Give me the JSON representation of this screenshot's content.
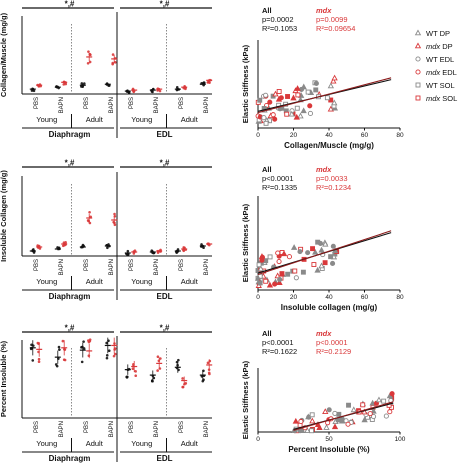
{
  "colors": {
    "black": "#111111",
    "red": "#d9383a",
    "grey": "#8a8a8a",
    "darkred": "#8b1a1a"
  },
  "sig_label": "*,#",
  "group_labels": {
    "young": "Young",
    "adult": "Adult",
    "diaphragm": "Diaphragm",
    "edl": "EDL"
  },
  "treatment_labels": [
    "PBS",
    "BAPN",
    "PBS",
    "BAPN"
  ],
  "legend": {
    "entries": [
      {
        "label": "WT DP",
        "marker": "triangle",
        "color": "#8a8a8a"
      },
      {
        "label": "mdx DP",
        "marker": "triangle",
        "color": "#d9383a"
      },
      {
        "label": "WT EDL",
        "marker": "circle",
        "color": "#8a8a8a"
      },
      {
        "label": "mdx EDL",
        "marker": "circle",
        "color": "#d9383a"
      },
      {
        "label": "WT SOL",
        "marker": "square",
        "color": "#8a8a8a"
      },
      {
        "label": "mdx SOL",
        "marker": "square",
        "color": "#d9383a"
      }
    ]
  },
  "chart_data": [
    {
      "type": "scatter",
      "panel": "dot-plot",
      "ylabel": "Collagen/Muscle (mg/g)",
      "groups": [
        "Young PBS",
        "Young BAPN",
        "Adult PBS",
        "Adult BAPN"
      ],
      "muscles": [
        "Diaphragm",
        "EDL"
      ],
      "series": [
        {
          "name": "WT",
          "color": "#111111",
          "means": [
            5,
            7,
            9,
            10,
            3,
            4,
            5,
            10
          ]
        },
        {
          "name": "mdx",
          "color": "#d9383a",
          "means": [
            9,
            12,
            38,
            36,
            4,
            5,
            7,
            14
          ]
        }
      ],
      "ylim": [
        0,
        80
      ]
    },
    {
      "type": "scatter",
      "panel": "correlation",
      "xlabel": "Collagen/Muscle (mg/g)",
      "ylabel": "Elastic Stiffness (kPa)",
      "xticks": [
        0,
        20,
        40,
        60,
        80
      ],
      "xlim": [
        0,
        80
      ],
      "ylim": [
        0,
        2000
      ],
      "stats": {
        "all_label": "All",
        "mdx_label": "mdx",
        "all_p": "p=0.0002",
        "all_r2": "R²=0.1053",
        "mdx_p": "p=0.0099",
        "mdx_r2": "R²=0.09654"
      },
      "fit": {
        "x0": 0,
        "y0": 380,
        "x1": 75,
        "y1": 1100
      }
    },
    {
      "type": "scatter",
      "panel": "dot-plot",
      "ylabel": "Insoluble Collagen (mg/g)",
      "groups": [
        "Young PBS",
        "Young BAPN",
        "Adult PBS",
        "Adult BAPN"
      ],
      "muscles": [
        "Diaphragm",
        "EDL"
      ],
      "series": [
        {
          "name": "WT",
          "color": "#111111",
          "means": [
            5,
            7,
            9,
            10,
            3,
            4,
            5,
            10
          ]
        },
        {
          "name": "mdx",
          "color": "#d9383a",
          "means": [
            9,
            12,
            38,
            36,
            4,
            5,
            7,
            12
          ]
        }
      ],
      "ylim": [
        0,
        80
      ]
    },
    {
      "type": "scatter",
      "panel": "correlation",
      "xlabel": "Insoluble collagen (mg/g)",
      "ylabel": "Elastic Stiffness (kPa)",
      "xticks": [
        0,
        20,
        40,
        60,
        80
      ],
      "xlim": [
        0,
        80
      ],
      "ylim": [
        0,
        2000
      ],
      "stats": {
        "all_label": "All",
        "mdx_label": "mdx",
        "all_p": "p<0.0001",
        "all_r2": "R²=0.1335",
        "mdx_p": "p=0.0033",
        "mdx_r2": "R²=0.1234"
      },
      "fit": {
        "x0": 0,
        "y0": 360,
        "x1": 75,
        "y1": 1220
      }
    },
    {
      "type": "scatter",
      "panel": "dot-plot",
      "ylabel": "Percent Insoluble (%)",
      "groups": [
        "Young PBS",
        "Young BAPN",
        "Adult PBS",
        "Adult BAPN"
      ],
      "muscles": [
        "Diaphragm",
        "EDL"
      ],
      "series": [
        {
          "name": "WT",
          "color": "#111111",
          "means": [
            90,
            78,
            87,
            93,
            62,
            55,
            65,
            55
          ]
        },
        {
          "name": "mdx",
          "color": "#d9383a",
          "means": [
            88,
            90,
            86,
            93,
            66,
            70,
            48,
            68
          ]
        }
      ],
      "ylim": [
        0,
        100
      ]
    },
    {
      "type": "scatter",
      "panel": "correlation",
      "xlabel": "Percent Insoluble (%)",
      "ylabel": "Elastic Stiffness (kPa)",
      "xticks": [
        0,
        50,
        100
      ],
      "xlim": [
        0,
        100
      ],
      "ylim": [
        0,
        2000
      ],
      "stats": {
        "all_label": "All",
        "mdx_label": "mdx",
        "all_p": "p<0.0001",
        "all_r2": "R²=0.1622",
        "mdx_p": "p<0.0001",
        "mdx_r2": "R²=0.2129"
      },
      "fit": {
        "x0": 25,
        "y0": 80,
        "x1": 95,
        "y1": 900
      }
    }
  ]
}
